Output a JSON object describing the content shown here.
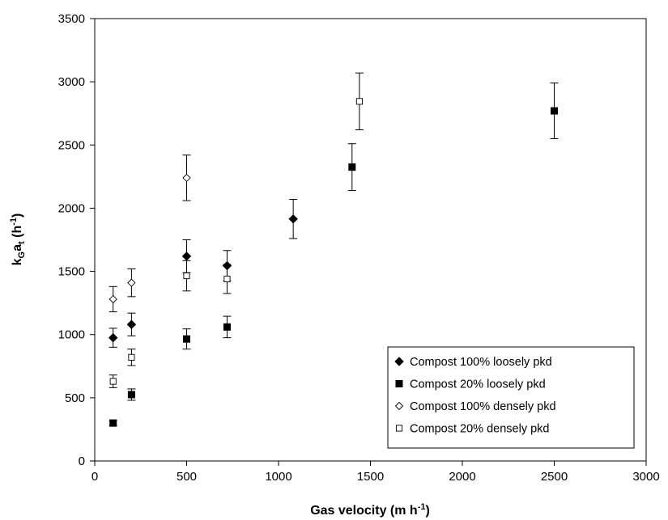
{
  "chart_data": {
    "type": "scatter",
    "xlabel": "Gas velocity (m h",
    "xlabel_sup": "-1",
    "xlabel_end": ")",
    "ylabel_main": "k",
    "ylabel_sub1": "G",
    "ylabel_mid": "a",
    "ylabel_sub2": "t",
    "ylabel_rest": " (h",
    "ylabel_sup": "-1",
    "ylabel_end": ")",
    "xlim": [
      0,
      3000
    ],
    "ylim": [
      0,
      3500
    ],
    "xticks": [
      "0",
      "500",
      "1000",
      "1500",
      "2000",
      "2500",
      "3000"
    ],
    "yticks": [
      "0",
      "500",
      "1000",
      "1500",
      "2000",
      "2500",
      "3000",
      "3500"
    ],
    "grid": false,
    "legend_position": "bottom-right",
    "series": [
      {
        "name": "Compost 100% loosely pkd",
        "marker": "filled-diamond",
        "points": [
          {
            "x": 100,
            "y": 975,
            "err": 75
          },
          {
            "x": 200,
            "y": 1080,
            "err": 90
          },
          {
            "x": 500,
            "y": 1620,
            "err": 130
          },
          {
            "x": 720,
            "y": 1545,
            "err": 120
          },
          {
            "x": 1080,
            "y": 1915,
            "err": 155
          }
        ]
      },
      {
        "name": "Compost 20% loosely pkd",
        "marker": "filled-square",
        "points": [
          {
            "x": 100,
            "y": 300,
            "err": 20
          },
          {
            "x": 200,
            "y": 525,
            "err": 45
          },
          {
            "x": 500,
            "y": 965,
            "err": 80
          },
          {
            "x": 720,
            "y": 1060,
            "err": 85
          },
          {
            "x": 1400,
            "y": 2325,
            "err": 185
          },
          {
            "x": 2500,
            "y": 2770,
            "err": 220
          }
        ]
      },
      {
        "name": "Compost 100% densely pkd",
        "marker": "open-diamond",
        "points": [
          {
            "x": 100,
            "y": 1280,
            "err": 100
          },
          {
            "x": 200,
            "y": 1410,
            "err": 110
          },
          {
            "x": 500,
            "y": 2240,
            "err": 180
          }
        ]
      },
      {
        "name": "Compost 20% densely pkd",
        "marker": "open-square",
        "points": [
          {
            "x": 100,
            "y": 630,
            "err": 50
          },
          {
            "x": 200,
            "y": 820,
            "err": 65
          },
          {
            "x": 500,
            "y": 1465,
            "err": 120
          },
          {
            "x": 720,
            "y": 1440,
            "err": 115
          },
          {
            "x": 1440,
            "y": 2845,
            "err": 225
          }
        ]
      }
    ]
  }
}
